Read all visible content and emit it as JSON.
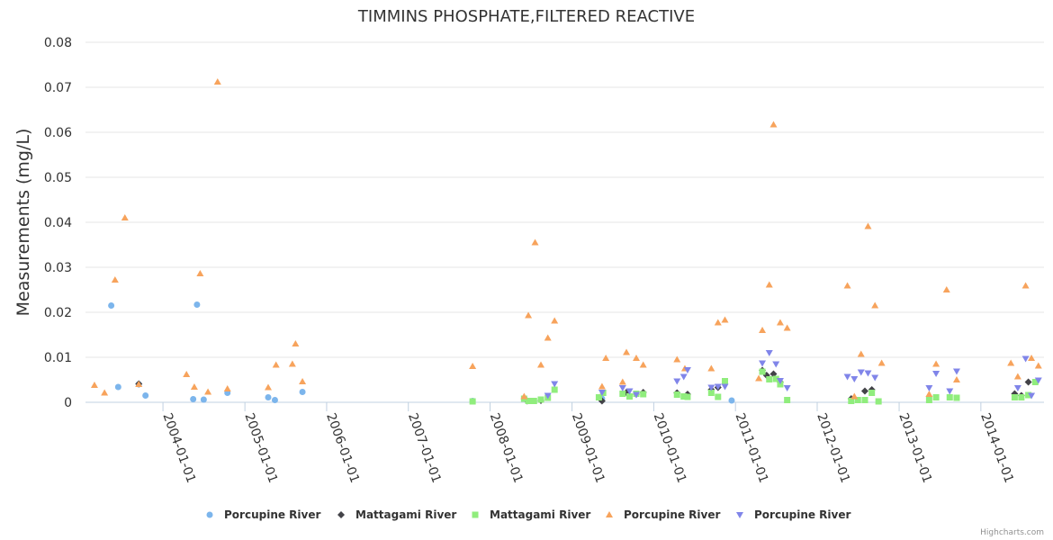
{
  "chart_data": {
    "type": "scatter",
    "title": "TIMMINS PHOSPHATE,FILTERED REACTIVE",
    "ylabel": "Measurements (mg/L)",
    "xlabel": "",
    "ylim": [
      0,
      0.08
    ],
    "yticks": [
      "0",
      "0.01",
      "0.02",
      "0.03",
      "0.04",
      "0.05",
      "0.06",
      "0.07",
      "0.08"
    ],
    "yticks_values": [
      0,
      0.01,
      0.02,
      0.03,
      0.04,
      0.05,
      0.06,
      0.07,
      0.08
    ],
    "xlim": [
      "2003-01-20",
      "2014-10-10"
    ],
    "xticks": [
      "2004-01-01",
      "2005-01-01",
      "2006-01-01",
      "2007-01-01",
      "2008-01-01",
      "2009-01-01",
      "2010-01-01",
      "2011-01-01",
      "2012-01-01",
      "2013-01-01",
      "2014-01-01"
    ],
    "legend_position": "bottom-center",
    "credits": "Highcharts.com",
    "series": [
      {
        "name": "Porcupine River",
        "marker": "circle",
        "color": "#7cb5ec",
        "points": [
          [
            "2003-05-15",
            0.0215
          ],
          [
            "2003-06-15",
            0.0034
          ],
          [
            "2003-09-15",
            0.004
          ],
          [
            "2003-10-15",
            0.0015
          ],
          [
            "2004-05-15",
            0.0007
          ],
          [
            "2004-06-01",
            0.0217
          ],
          [
            "2004-07-01",
            0.0006
          ],
          [
            "2004-10-15",
            0.0021
          ],
          [
            "2005-04-15",
            0.0011
          ],
          [
            "2005-05-15",
            0.0005
          ],
          [
            "2005-09-15",
            0.0023
          ],
          [
            "2007-10-15",
            0.0003
          ],
          [
            "2008-07-15",
            0.0003
          ],
          [
            "2009-05-15",
            0.0008
          ],
          [
            "2010-12-15",
            0.0004
          ]
        ]
      },
      {
        "name": "Mattagami River",
        "marker": "diamond",
        "color": "#434348",
        "points": [
          [
            "2003-09-15",
            0.0041
          ],
          [
            "2008-06-15",
            0.0003
          ],
          [
            "2008-08-15",
            0.0004
          ],
          [
            "2009-05-15",
            0.0003
          ],
          [
            "2009-09-01",
            0.0022
          ],
          [
            "2009-10-15",
            0.0018
          ],
          [
            "2009-11-15",
            0.0022
          ],
          [
            "2010-04-15",
            0.0021
          ],
          [
            "2010-06-01",
            0.0018
          ],
          [
            "2010-09-15",
            0.0028
          ],
          [
            "2010-10-15",
            0.0033
          ],
          [
            "2011-05-01",
            0.0071
          ],
          [
            "2011-05-20",
            0.006
          ],
          [
            "2011-06-20",
            0.0063
          ],
          [
            "2011-07-20",
            0.0045
          ],
          [
            "2012-06-01",
            0.0008
          ],
          [
            "2012-08-01",
            0.0025
          ],
          [
            "2012-09-01",
            0.0028
          ],
          [
            "2014-06-01",
            0.0019
          ],
          [
            "2014-07-01",
            0.0015
          ],
          [
            "2014-08-01",
            0.0045
          ]
        ]
      },
      {
        "name": "Mattagami River",
        "marker": "square",
        "color": "#90ed7d",
        "points": [
          [
            "2007-10-15",
            0.0002
          ],
          [
            "2008-06-01",
            0.0008
          ],
          [
            "2008-06-20",
            0.0003
          ],
          [
            "2008-07-15",
            0.0003
          ],
          [
            "2008-08-15",
            0.0006
          ],
          [
            "2008-09-15",
            0.001
          ],
          [
            "2008-10-15",
            0.0028
          ],
          [
            "2009-05-01",
            0.0011
          ],
          [
            "2009-05-20",
            0.0021
          ],
          [
            "2009-08-15",
            0.0019
          ],
          [
            "2009-09-15",
            0.0013
          ],
          [
            "2009-10-15",
            0.0019
          ],
          [
            "2009-11-15",
            0.0018
          ],
          [
            "2010-04-15",
            0.0017
          ],
          [
            "2010-05-15",
            0.0013
          ],
          [
            "2010-06-01",
            0.0012
          ],
          [
            "2010-09-15",
            0.0021
          ],
          [
            "2010-10-15",
            0.0012
          ],
          [
            "2010-11-15",
            0.0047
          ],
          [
            "2011-05-01",
            0.0068
          ],
          [
            "2011-06-01",
            0.0051
          ],
          [
            "2011-07-01",
            0.0052
          ],
          [
            "2011-07-20",
            0.004
          ],
          [
            "2011-08-20",
            0.0005
          ],
          [
            "2012-06-01",
            0.0003
          ],
          [
            "2012-07-01",
            0.0005
          ],
          [
            "2012-08-01",
            0.0005
          ],
          [
            "2012-09-01",
            0.0021
          ],
          [
            "2012-10-01",
            0.0002
          ],
          [
            "2013-05-15",
            0.0005
          ],
          [
            "2013-06-15",
            0.0011
          ],
          [
            "2013-08-15",
            0.0011
          ],
          [
            "2013-09-15",
            0.001
          ],
          [
            "2014-06-01",
            0.0011
          ],
          [
            "2014-07-01",
            0.0011
          ],
          [
            "2014-08-01",
            0.0016
          ],
          [
            "2014-09-01",
            0.0045
          ]
        ]
      },
      {
        "name": "Porcupine River",
        "marker": "triangle",
        "color": "#f7a35c",
        "points": [
          [
            "2003-03-01",
            0.0038
          ],
          [
            "2003-04-15",
            0.0021
          ],
          [
            "2003-06-01",
            0.0272
          ],
          [
            "2003-07-15",
            0.041
          ],
          [
            "2003-09-15",
            0.004
          ],
          [
            "2004-04-15",
            0.0062
          ],
          [
            "2004-05-20",
            0.0034
          ],
          [
            "2004-06-15",
            0.0286
          ],
          [
            "2004-07-20",
            0.0023
          ],
          [
            "2004-09-01",
            0.0712
          ],
          [
            "2004-10-15",
            0.003
          ],
          [
            "2005-04-15",
            0.0033
          ],
          [
            "2005-05-20",
            0.0083
          ],
          [
            "2005-08-01",
            0.0085
          ],
          [
            "2005-08-15",
            0.013
          ],
          [
            "2005-09-15",
            0.0046
          ],
          [
            "2007-10-15",
            0.008
          ],
          [
            "2008-06-01",
            0.0013
          ],
          [
            "2008-06-20",
            0.0193
          ],
          [
            "2008-07-20",
            0.0355
          ],
          [
            "2008-08-15",
            0.0083
          ],
          [
            "2008-09-15",
            0.0143
          ],
          [
            "2008-10-15",
            0.0181
          ],
          [
            "2009-05-15",
            0.0035
          ],
          [
            "2009-06-01",
            0.0098
          ],
          [
            "2009-08-15",
            0.0045
          ],
          [
            "2009-09-01",
            0.0111
          ],
          [
            "2009-10-15",
            0.0098
          ],
          [
            "2009-11-15",
            0.0083
          ],
          [
            "2010-04-15",
            0.0095
          ],
          [
            "2010-05-20",
            0.0075
          ],
          [
            "2010-09-15",
            0.0075
          ],
          [
            "2010-10-15",
            0.0177
          ],
          [
            "2010-11-15",
            0.0183
          ],
          [
            "2011-04-15",
            0.0053
          ],
          [
            "2011-05-01",
            0.016
          ],
          [
            "2011-06-01",
            0.0261
          ],
          [
            "2011-06-20",
            0.0617
          ],
          [
            "2011-07-20",
            0.0177
          ],
          [
            "2011-08-20",
            0.0165
          ],
          [
            "2012-05-15",
            0.0259
          ],
          [
            "2012-06-15",
            0.0013
          ],
          [
            "2012-07-15",
            0.0107
          ],
          [
            "2012-08-15",
            0.0391
          ],
          [
            "2012-09-15",
            0.0215
          ],
          [
            "2012-10-15",
            0.0087
          ],
          [
            "2013-05-15",
            0.0018
          ],
          [
            "2013-06-15",
            0.0085
          ],
          [
            "2013-08-01",
            0.025
          ],
          [
            "2013-09-15",
            0.005
          ],
          [
            "2014-05-15",
            0.0087
          ],
          [
            "2014-06-15",
            0.0057
          ],
          [
            "2014-07-20",
            0.0259
          ],
          [
            "2014-08-15",
            0.0098
          ],
          [
            "2014-09-15",
            0.0081
          ]
        ]
      },
      {
        "name": "Porcupine River",
        "marker": "triangle-down",
        "color": "#8085e9",
        "points": [
          [
            "2008-09-15",
            0.0015
          ],
          [
            "2008-10-15",
            0.0041
          ],
          [
            "2009-05-15",
            0.0022
          ],
          [
            "2009-08-15",
            0.0032
          ],
          [
            "2009-09-15",
            0.0025
          ],
          [
            "2009-10-15",
            0.0017
          ],
          [
            "2010-04-15",
            0.0047
          ],
          [
            "2010-05-15",
            0.0057
          ],
          [
            "2010-06-01",
            0.0072
          ],
          [
            "2010-09-15",
            0.0033
          ],
          [
            "2010-10-15",
            0.0035
          ],
          [
            "2010-11-15",
            0.0035
          ],
          [
            "2011-05-01",
            0.0087
          ],
          [
            "2011-06-01",
            0.011
          ],
          [
            "2011-07-01",
            0.0085
          ],
          [
            "2011-07-20",
            0.0048
          ],
          [
            "2011-08-20",
            0.0032
          ],
          [
            "2012-05-15",
            0.0057
          ],
          [
            "2012-06-15",
            0.0052
          ],
          [
            "2012-07-15",
            0.0067
          ],
          [
            "2012-08-15",
            0.0065
          ],
          [
            "2012-09-15",
            0.0055
          ],
          [
            "2013-05-15",
            0.0032
          ],
          [
            "2013-06-15",
            0.0064
          ],
          [
            "2013-08-15",
            0.0025
          ],
          [
            "2013-09-15",
            0.0069
          ],
          [
            "2014-06-15",
            0.0032
          ],
          [
            "2014-07-20",
            0.0097
          ],
          [
            "2014-08-15",
            0.0015
          ],
          [
            "2014-09-15",
            0.0049
          ]
        ]
      }
    ]
  }
}
